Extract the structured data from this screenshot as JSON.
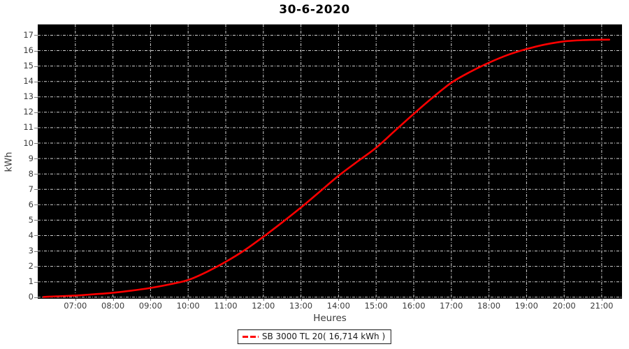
{
  "window": {
    "title": "30-6-2020"
  },
  "chart_data": {
    "type": "line",
    "title": "30-6-2020",
    "xlabel": "Heures",
    "ylabel": "kWh",
    "plot_background": "#000000",
    "grid": {
      "style": "dash-dot",
      "color": "#cfcfcf",
      "x_interval_hours": 1,
      "y_interval_kwh": 1
    },
    "xlim_hours": [
      6.0,
      21.54
    ],
    "ylim": [
      -0.1,
      17.7
    ],
    "x_ticks": [
      {
        "value": 7,
        "label": "07:00"
      },
      {
        "value": 8,
        "label": "08:00"
      },
      {
        "value": 9,
        "label": "09:00"
      },
      {
        "value": 10,
        "label": "10:00"
      },
      {
        "value": 11,
        "label": "11:00"
      },
      {
        "value": 12,
        "label": "12:00"
      },
      {
        "value": 13,
        "label": "13:00"
      },
      {
        "value": 14,
        "label": "14:00"
      },
      {
        "value": 15,
        "label": "15:00"
      },
      {
        "value": 16,
        "label": "16:00"
      },
      {
        "value": 17,
        "label": "17:00"
      },
      {
        "value": 18,
        "label": "18:00"
      },
      {
        "value": 19,
        "label": "19:00"
      },
      {
        "value": 20,
        "label": "20:00"
      },
      {
        "value": 21,
        "label": "21:00"
      }
    ],
    "y_ticks": [
      {
        "value": 0,
        "label": "0"
      },
      {
        "value": 1,
        "label": "1"
      },
      {
        "value": 2,
        "label": "2"
      },
      {
        "value": 3,
        "label": "3"
      },
      {
        "value": 4,
        "label": "4"
      },
      {
        "value": 5,
        "label": "5"
      },
      {
        "value": 6,
        "label": "6"
      },
      {
        "value": 7,
        "label": "7"
      },
      {
        "value": 8,
        "label": "8"
      },
      {
        "value": 9,
        "label": "9"
      },
      {
        "value": 10,
        "label": "10"
      },
      {
        "value": 11,
        "label": "11"
      },
      {
        "value": 12,
        "label": "12"
      },
      {
        "value": 13,
        "label": "13"
      },
      {
        "value": 14,
        "label": "14"
      },
      {
        "value": 15,
        "label": "15"
      },
      {
        "value": 16,
        "label": "16"
      },
      {
        "value": 17,
        "label": "17"
      }
    ],
    "legend": {
      "position": "bottom-center",
      "label": "SB 3000 TL 20( 16,714 kWh )",
      "marker_color": "#ff0000"
    },
    "series": [
      {
        "name": "SB 3000 TL 20",
        "color": "#ff0000",
        "total_kwh_label": "16,714",
        "points": [
          [
            6.15,
            0.02
          ],
          [
            6.5,
            0.06
          ],
          [
            7.0,
            0.11
          ],
          [
            7.5,
            0.19
          ],
          [
            8.0,
            0.29
          ],
          [
            8.5,
            0.43
          ],
          [
            9.0,
            0.6
          ],
          [
            9.5,
            0.83
          ],
          [
            10.0,
            1.12
          ],
          [
            10.5,
            1.65
          ],
          [
            11.0,
            2.3
          ],
          [
            11.5,
            3.05
          ],
          [
            12.0,
            3.92
          ],
          [
            12.5,
            4.85
          ],
          [
            13.0,
            5.82
          ],
          [
            13.5,
            6.85
          ],
          [
            14.0,
            7.88
          ],
          [
            14.5,
            8.8
          ],
          [
            15.0,
            9.7
          ],
          [
            15.5,
            10.8
          ],
          [
            16.0,
            11.9
          ],
          [
            16.5,
            12.95
          ],
          [
            17.0,
            13.92
          ],
          [
            17.5,
            14.62
          ],
          [
            18.0,
            15.22
          ],
          [
            18.5,
            15.72
          ],
          [
            19.0,
            16.1
          ],
          [
            19.5,
            16.4
          ],
          [
            20.0,
            16.6
          ],
          [
            20.5,
            16.68
          ],
          [
            21.0,
            16.71
          ],
          [
            21.2,
            16.714
          ]
        ]
      }
    ]
  }
}
